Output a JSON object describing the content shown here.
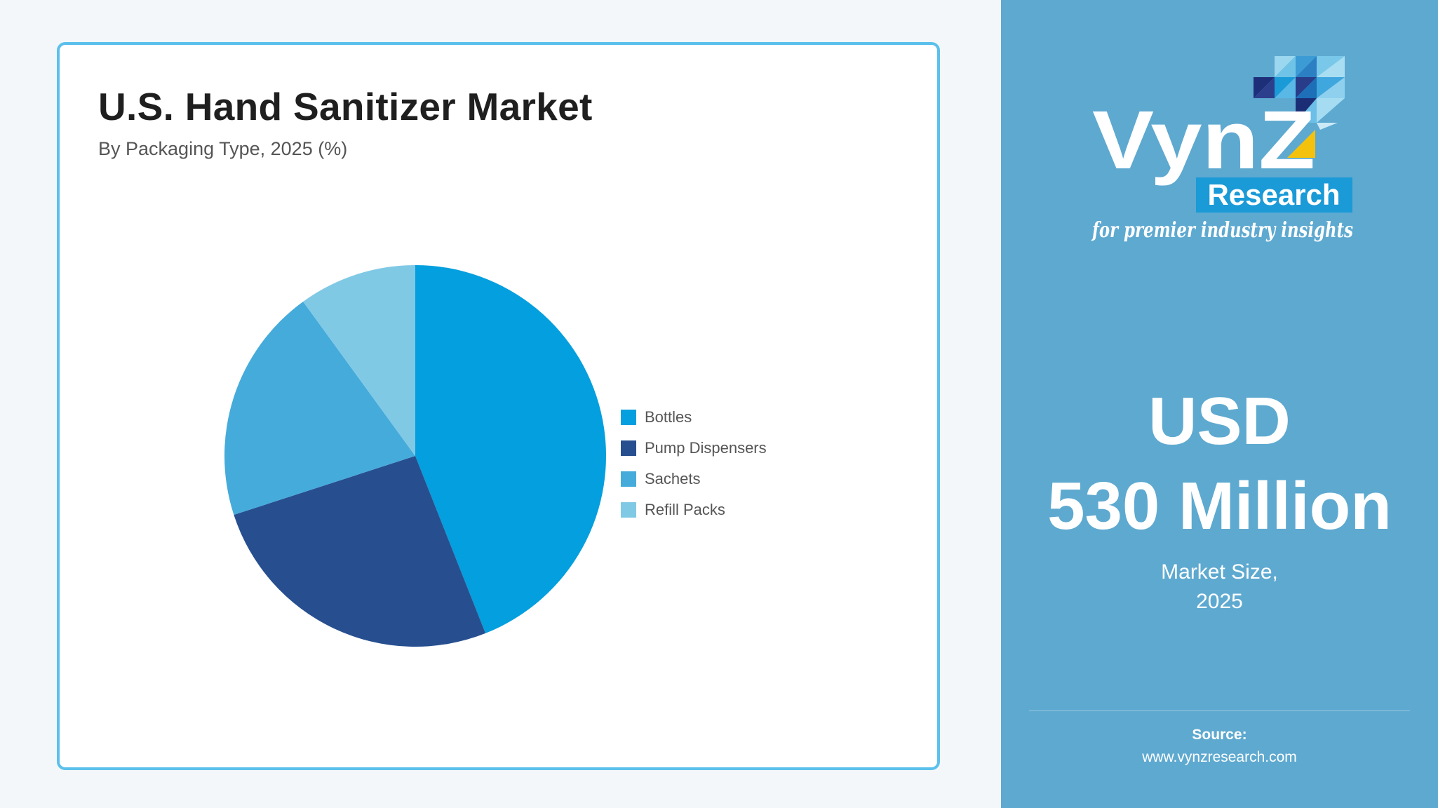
{
  "chart_data": {
    "type": "pie",
    "title": "U.S. Hand Sanitizer Market",
    "subtitle": "By Packaging Type, 2025 (%)",
    "categories": [
      "Bottles",
      "Pump Dispensers",
      "Sachets",
      "Refill Packs"
    ],
    "values": [
      44,
      26,
      20,
      10
    ],
    "colors": [
      "#039fde",
      "#274f90",
      "#45abdb",
      "#80c9e5"
    ],
    "legend_position": "right"
  },
  "sidebar": {
    "logo": {
      "brand": "VynZ",
      "badge": "Research",
      "tagline": "for premier industry insights"
    },
    "market_size": {
      "value_line1": "USD",
      "value_line2": "530 Million",
      "label_line1": "Market Size,",
      "label_line2": "2025"
    },
    "source": {
      "label": "Source:",
      "url": "www.vynzresearch.com"
    }
  }
}
